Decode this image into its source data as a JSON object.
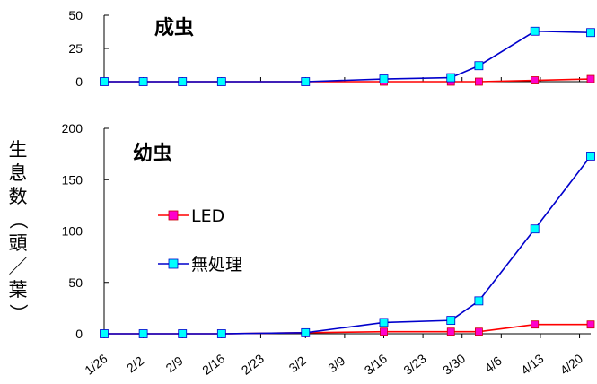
{
  "chart_data": [
    {
      "type": "line",
      "title": "成虫",
      "ylabel": "生息数（頭／葉）",
      "ylim": [
        0,
        50
      ],
      "yticks": [
        "0",
        "25",
        "50"
      ],
      "x_tick_labels": [
        "1/26",
        "2/2",
        "2/9",
        "2/16",
        "2/23",
        "3/2",
        "3/9",
        "3/16",
        "3/23",
        "3/30",
        "4/6",
        "4/13",
        "4/20"
      ],
      "series": [
        {
          "name": "LED",
          "color": "#ff0000",
          "marker_color": "#ff00cc",
          "points": [
            {
              "x": "1/26",
              "y": 0
            },
            {
              "x": "2/2",
              "y": 0
            },
            {
              "x": "2/9",
              "y": 0
            },
            {
              "x": "2/16",
              "y": 0
            },
            {
              "x": "3/2",
              "y": 0
            },
            {
              "x": "3/16",
              "y": 0
            },
            {
              "x": "3/28",
              "y": 0
            },
            {
              "x": "4/2",
              "y": 0
            },
            {
              "x": "4/12",
              "y": 1
            },
            {
              "x": "4/22",
              "y": 2
            }
          ]
        },
        {
          "name": "無処理",
          "color": "#0000cc",
          "marker_color": "#00ffff",
          "points": [
            {
              "x": "1/26",
              "y": 0
            },
            {
              "x": "2/2",
              "y": 0
            },
            {
              "x": "2/9",
              "y": 0
            },
            {
              "x": "2/16",
              "y": 0
            },
            {
              "x": "3/2",
              "y": 0
            },
            {
              "x": "3/16",
              "y": 2
            },
            {
              "x": "3/28",
              "y": 3
            },
            {
              "x": "4/2",
              "y": 12
            },
            {
              "x": "4/12",
              "y": 38
            },
            {
              "x": "4/22",
              "y": 37
            }
          ]
        }
      ]
    },
    {
      "type": "line",
      "title": "幼虫",
      "ylabel": "生息数（頭／葉）",
      "ylim": [
        0,
        200
      ],
      "yticks": [
        "0",
        "50",
        "100",
        "150",
        "200"
      ],
      "x_tick_labels": [
        "1/26",
        "2/2",
        "2/9",
        "2/16",
        "2/23",
        "3/2",
        "3/9",
        "3/16",
        "3/23",
        "3/30",
        "4/6",
        "4/13",
        "4/20"
      ],
      "legend": [
        "LED",
        "無処理"
      ],
      "series": [
        {
          "name": "LED",
          "color": "#ff0000",
          "marker_color": "#ff00cc",
          "points": [
            {
              "x": "1/26",
              "y": 0
            },
            {
              "x": "2/2",
              "y": 0
            },
            {
              "x": "2/9",
              "y": 0
            },
            {
              "x": "2/16",
              "y": 0
            },
            {
              "x": "3/2",
              "y": 1
            },
            {
              "x": "3/16",
              "y": 2
            },
            {
              "x": "3/28",
              "y": 2
            },
            {
              "x": "4/2",
              "y": 2
            },
            {
              "x": "4/12",
              "y": 9
            },
            {
              "x": "4/22",
              "y": 9
            }
          ]
        },
        {
          "name": "無処理",
          "color": "#0000cc",
          "marker_color": "#00ffff",
          "points": [
            {
              "x": "1/26",
              "y": 0
            },
            {
              "x": "2/2",
              "y": 0
            },
            {
              "x": "2/9",
              "y": 0
            },
            {
              "x": "2/16",
              "y": 0
            },
            {
              "x": "3/2",
              "y": 1
            },
            {
              "x": "3/16",
              "y": 11
            },
            {
              "x": "3/28",
              "y": 13
            },
            {
              "x": "4/2",
              "y": 32
            },
            {
              "x": "4/12",
              "y": 102
            },
            {
              "x": "4/22",
              "y": 173
            }
          ]
        }
      ]
    }
  ]
}
